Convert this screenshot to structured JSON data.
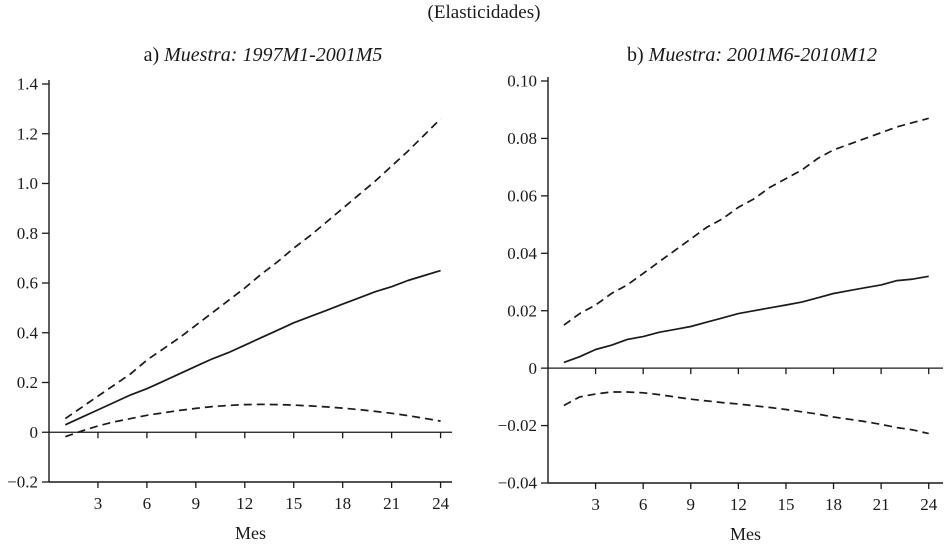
{
  "figure": {
    "title": "(Elasticidades)"
  },
  "colors": {
    "line": "#1a1a1a",
    "text": "#1a1a1a",
    "background": "#ffffff"
  },
  "chart_data": [
    {
      "type": "line",
      "title_prefix": "a)",
      "title": "Muestra: 1997M1-2001M5",
      "xlabel": "Mes",
      "x": [
        1,
        2,
        3,
        4,
        5,
        6,
        7,
        8,
        9,
        10,
        11,
        12,
        13,
        14,
        15,
        16,
        17,
        18,
        19,
        20,
        21,
        22,
        23,
        24
      ],
      "xticks": [
        3,
        6,
        9,
        12,
        15,
        18,
        21,
        24
      ],
      "ylim": [
        -0.2,
        1.4
      ],
      "yticks": [
        1.4,
        1.2,
        1.0,
        0.8,
        0.6,
        0.4,
        0.2,
        0,
        -0.2
      ],
      "ytick_labels": [
        "1.4",
        "1.2",
        "1.0",
        "0.8",
        "0.6",
        "0.4",
        "0.2",
        "0",
        "−0.2"
      ],
      "grid": false,
      "legend": "none",
      "zero_line": true,
      "series": [
        {
          "name": "respuesta-estimada",
          "style": "solid",
          "values": [
            0.03,
            0.06,
            0.09,
            0.12,
            0.15,
            0.175,
            0.205,
            0.235,
            0.265,
            0.295,
            0.32,
            0.35,
            0.38,
            0.41,
            0.44,
            0.465,
            0.49,
            0.515,
            0.54,
            0.565,
            0.585,
            0.61,
            0.63,
            0.65
          ]
        },
        {
          "name": "banda-superior",
          "style": "dashed",
          "values": [
            0.055,
            0.1,
            0.145,
            0.19,
            0.235,
            0.29,
            0.335,
            0.38,
            0.43,
            0.48,
            0.53,
            0.58,
            0.635,
            0.685,
            0.74,
            0.79,
            0.845,
            0.9,
            0.955,
            1.01,
            1.07,
            1.13,
            1.195,
            1.26
          ]
        },
        {
          "name": "banda-inferior",
          "style": "dashed",
          "values": [
            -0.018,
            0.005,
            0.025,
            0.042,
            0.055,
            0.068,
            0.078,
            0.088,
            0.096,
            0.103,
            0.108,
            0.111,
            0.112,
            0.111,
            0.109,
            0.106,
            0.102,
            0.097,
            0.091,
            0.084,
            0.076,
            0.067,
            0.056,
            0.045
          ]
        }
      ]
    },
    {
      "type": "line",
      "title_prefix": "b)",
      "title": "Muestra: 2001M6-2010M12",
      "xlabel": "Mes",
      "x": [
        1,
        2,
        3,
        4,
        5,
        6,
        7,
        8,
        9,
        10,
        11,
        12,
        13,
        14,
        15,
        16,
        17,
        18,
        19,
        20,
        21,
        22,
        23,
        24
      ],
      "xticks": [
        3,
        6,
        9,
        12,
        15,
        18,
        21,
        24
      ],
      "ylim": [
        -0.04,
        0.1
      ],
      "yticks": [
        0.1,
        0.08,
        0.06,
        0.04,
        0.02,
        0,
        -0.02,
        -0.04
      ],
      "ytick_labels": [
        "0.10",
        "0.08",
        "0.06",
        "0.04",
        "0.02",
        "0",
        "−0.02",
        "−0.04"
      ],
      "grid": false,
      "legend": "none",
      "zero_line": true,
      "series": [
        {
          "name": "respuesta-estimada",
          "style": "solid",
          "values": [
            0.002,
            0.004,
            0.0065,
            0.008,
            0.01,
            0.011,
            0.0125,
            0.0135,
            0.0145,
            0.016,
            0.0175,
            0.019,
            0.02,
            0.021,
            0.022,
            0.023,
            0.0245,
            0.026,
            0.027,
            0.028,
            0.029,
            0.0305,
            0.031,
            0.032
          ]
        },
        {
          "name": "banda-superior",
          "style": "dashed",
          "values": [
            0.015,
            0.019,
            0.022,
            0.026,
            0.029,
            0.033,
            0.037,
            0.041,
            0.045,
            0.049,
            0.052,
            0.056,
            0.059,
            0.063,
            0.066,
            0.069,
            0.073,
            0.076,
            0.078,
            0.08,
            0.082,
            0.084,
            0.0855,
            0.087
          ]
        },
        {
          "name": "banda-inferior",
          "style": "dashed",
          "values": [
            -0.013,
            -0.01,
            -0.009,
            -0.0083,
            -0.0083,
            -0.0086,
            -0.0092,
            -0.01,
            -0.0108,
            -0.0114,
            -0.012,
            -0.0125,
            -0.0131,
            -0.0137,
            -0.0144,
            -0.0152,
            -0.016,
            -0.017,
            -0.0178,
            -0.0186,
            -0.0196,
            -0.0207,
            -0.0215,
            -0.0228
          ]
        }
      ]
    }
  ]
}
